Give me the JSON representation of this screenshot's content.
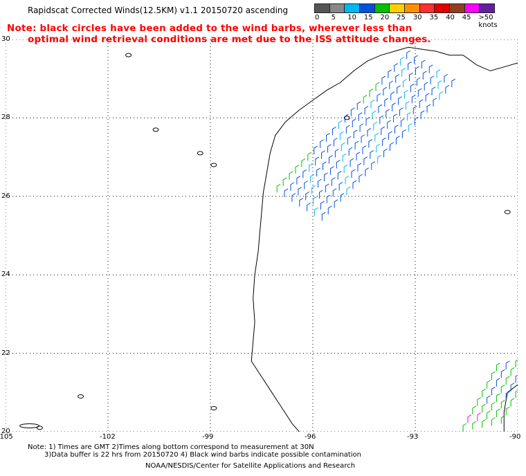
{
  "title": "Rapidscat Corrected Winds(12.5KM) v1.1 20150720 ascending",
  "note": {
    "line1": "Note: black circles have been added to the wind barbs, wherever less than",
    "line2": "optimal wind retrieval conditions are met due to the ISS attitude changes."
  },
  "legend": {
    "unit": "knots",
    "labels": [
      "0",
      "5",
      "10",
      "15",
      "20",
      "25",
      "30",
      "35",
      "40",
      "45",
      ">50 knots"
    ],
    "colors": [
      "#555555",
      "#888888",
      "#00b8f0",
      "#0050e0",
      "#00c000",
      "#ffd000",
      "#ff9000",
      "#ff3030",
      "#e00000",
      "#904020",
      "#ff00ff",
      "#6020a0"
    ]
  },
  "map": {
    "lon_range": [
      -105,
      -90
    ],
    "lat_range": [
      20,
      30
    ],
    "lon_ticks": [
      "-105",
      "-102",
      "-99",
      "-96",
      "-93",
      "-90"
    ],
    "lat_ticks": [
      "30",
      "28",
      "26",
      "24",
      "22",
      "20"
    ],
    "coast_color": "#000000",
    "wind_colors": {
      "calm": "#00b8f0",
      "moderate": "#0050e0",
      "fresh": "#00c000",
      "strong": "#ff00ff"
    }
  },
  "footer": {
    "line1": "Note: 1) Times are GMT 2)Times along bottom correspond to measurement at 30N",
    "line2": "3)Data buffer is 22 hrs from 20150720 4) Black wind barbs indicate possible contamination",
    "line3": "NOAA/NESDIS/Center for Satellite Applications and Research"
  }
}
